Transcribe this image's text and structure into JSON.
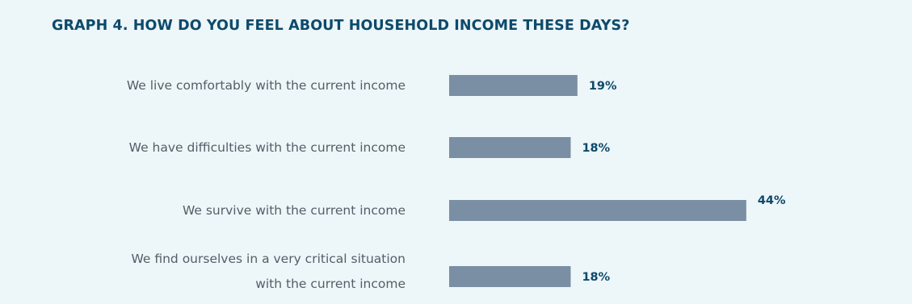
{
  "title": "GRAPH 4. HOW DO YOU FEEL ABOUT HOUSEHOLD INCOME THESE DAYS?",
  "colors": {
    "background": "#edf6f9",
    "bar": "#7a8fa3",
    "title": "#0d4a6b",
    "value_label": "#0d4a6b",
    "category_label": "#555e66"
  },
  "chart_data": {
    "type": "bar",
    "orientation": "horizontal",
    "title": "GRAPH 4. HOW DO YOU FEEL ABOUT HOUSEHOLD INCOME THESE DAYS?",
    "categories": [
      [
        "We live comfortably with the current income"
      ],
      [
        "We have difficulties with the current income"
      ],
      [
        "We survive with the current income"
      ],
      [
        "We find ourselves in a very critical situation",
        "with the current income"
      ]
    ],
    "values": [
      19,
      18,
      44,
      18
    ],
    "value_labels": [
      "19%",
      "18%",
      "44%",
      "18%"
    ],
    "unit": "%",
    "grid": false,
    "legend": "none"
  }
}
